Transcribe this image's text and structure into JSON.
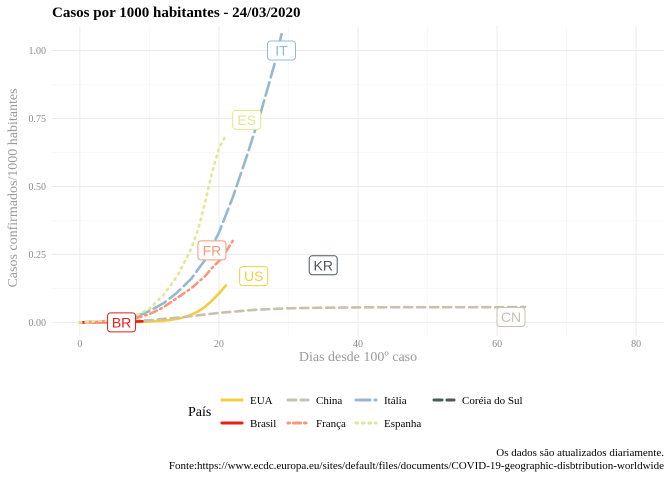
{
  "chart_data": {
    "type": "line",
    "title": "Casos por 1000 habitantes -  24/03/2020",
    "xlabel": "Dias desde 100º caso",
    "ylabel": "Casos confirmados/1000 habitantes",
    "xlim": [
      -4,
      84
    ],
    "ylim": [
      -0.05,
      1.09
    ],
    "x_ticks": [
      0,
      20,
      40,
      60,
      80
    ],
    "y_ticks": [
      0,
      0.25,
      0.5,
      0.75,
      1.0
    ],
    "x_tick_labels": [
      "0",
      "20",
      "40",
      "60",
      "80"
    ],
    "y_tick_labels": [
      "0.00",
      "0.25",
      "0.50",
      "0.75",
      "1.00"
    ],
    "grid": true,
    "legend": {
      "title": "País",
      "position": "bottom",
      "entries": [
        {
          "name": "EUA",
          "color": "#F2CE3F",
          "dash": "solid"
        },
        {
          "name": "China",
          "color": "#C7C1AE",
          "dash": "dashed"
        },
        {
          "name": "Itália",
          "color": "#94B8D2",
          "dash": "longdash"
        },
        {
          "name": "Coréia do Sul",
          "color": "#4A585E",
          "dash": "dashed"
        },
        {
          "name": "Brasil",
          "color": "#EE1B1B",
          "dash": "solid"
        },
        {
          "name": "França",
          "color": "#F8967A",
          "dash": "dotdash"
        },
        {
          "name": "Espanha",
          "color": "#E2E691",
          "dash": "dotted"
        }
      ]
    },
    "series": [
      {
        "name": "EUA",
        "label": "US",
        "color": "#F2CE3F",
        "dash": "solid",
        "x": [
          0,
          2,
          4,
          6,
          8,
          10,
          12,
          13,
          14,
          15,
          16,
          17,
          18,
          19,
          20,
          21
        ],
        "y": [
          0,
          0,
          0.001,
          0.001,
          0.002,
          0.003,
          0.006,
          0.009,
          0.013,
          0.019,
          0.028,
          0.04,
          0.057,
          0.08,
          0.106,
          0.136
        ],
        "label_at": [
          25,
          0.17
        ]
      },
      {
        "name": "China",
        "label": "CN",
        "color": "#C7C1AE",
        "dash": "dashed",
        "x": [
          0,
          5,
          10,
          15,
          20,
          25,
          30,
          35,
          40,
          45,
          50,
          55,
          60,
          64
        ],
        "y": [
          0,
          0.002,
          0.008,
          0.02,
          0.035,
          0.046,
          0.052,
          0.054,
          0.055,
          0.056,
          0.056,
          0.056,
          0.056,
          0.057
        ],
        "label_at": [
          62,
          0.02
        ]
      },
      {
        "name": "Itália",
        "label": "IT",
        "color": "#94B8D2",
        "dash": "longdash",
        "x": [
          0,
          4,
          8,
          10,
          12,
          14,
          16,
          18,
          20,
          22,
          24,
          26,
          27,
          28,
          29
        ],
        "y": [
          0,
          0.005,
          0.02,
          0.042,
          0.07,
          0.11,
          0.16,
          0.23,
          0.33,
          0.46,
          0.61,
          0.77,
          0.86,
          0.95,
          1.06
        ],
        "label_at": [
          29,
          1.0
        ]
      },
      {
        "name": "Coréia do Sul",
        "label": "KR",
        "color": "#4A585E",
        "dash": "dashed",
        "x": [],
        "y": [],
        "label_at": [
          35,
          0.21
        ]
      },
      {
        "name": "Brasil",
        "label": "BR",
        "color": "#EE1B1B",
        "dash": "solid",
        "x": [
          0,
          2,
          4,
          6,
          8,
          9
        ],
        "y": [
          0,
          0.001,
          0.001,
          0.002,
          0.003,
          0.004
        ],
        "label_at": [
          6,
          0.0
        ]
      },
      {
        "name": "França",
        "label": "FR",
        "color": "#F8967A",
        "dash": "dotdash",
        "x": [
          0,
          4,
          8,
          10,
          12,
          14,
          16,
          18,
          19,
          20,
          21,
          22
        ],
        "y": [
          0,
          0.004,
          0.015,
          0.03,
          0.055,
          0.09,
          0.125,
          0.17,
          0.2,
          0.225,
          0.26,
          0.3
        ],
        "label_at": [
          19,
          0.265
        ]
      },
      {
        "name": "Espanha",
        "label": "ES",
        "color": "#E2E691",
        "dash": "dotted",
        "x": [
          0,
          4,
          8,
          10,
          12,
          14,
          16,
          17,
          18,
          19,
          20,
          21
        ],
        "y": [
          0,
          0.006,
          0.025,
          0.05,
          0.1,
          0.17,
          0.27,
          0.34,
          0.44,
          0.55,
          0.64,
          0.69
        ],
        "label_at": [
          24,
          0.745
        ]
      }
    ]
  },
  "caption": {
    "line1": "Os dados são atualizados diariamente.",
    "line2": "Fonte:https://www.ecdc.europa.eu/sites/default/files/documents/COVID-19-geographic-disbtribution-worldwide"
  }
}
